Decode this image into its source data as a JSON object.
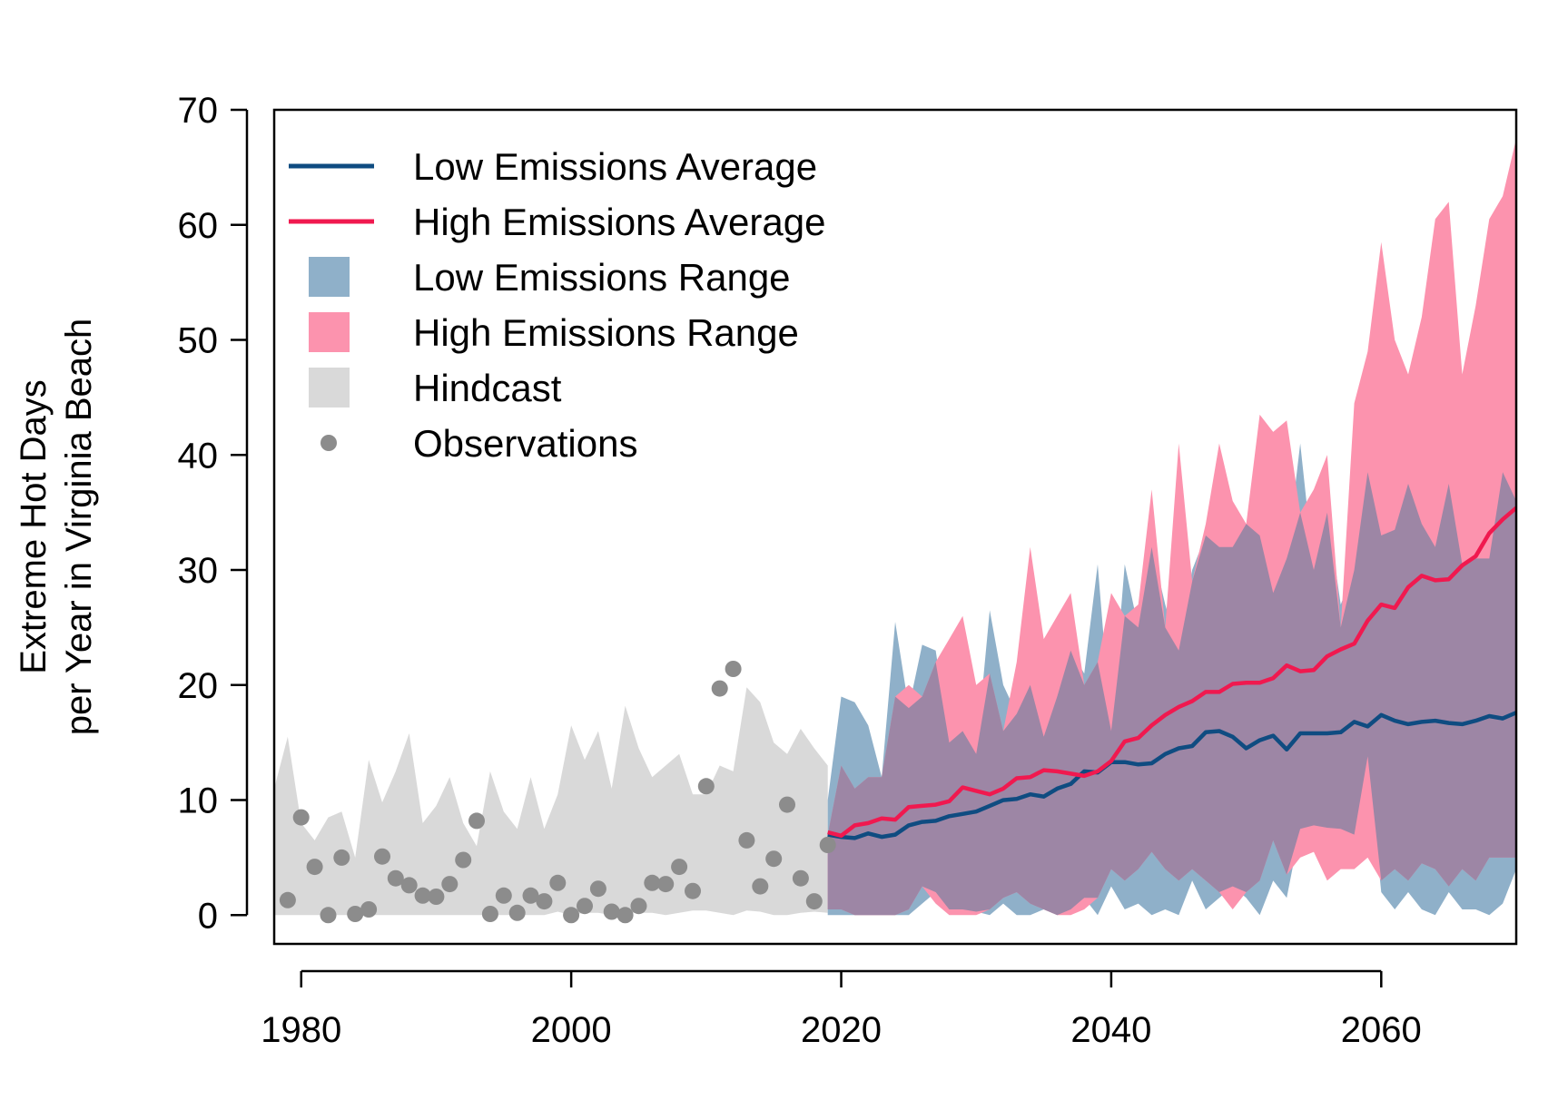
{
  "chart_data": {
    "type": "line",
    "title": "",
    "xlabel": "",
    "ylabel_lines": [
      "Extreme Hot Days",
      "per Year in Virginia Beach"
    ],
    "xlim": [
      1978,
      2070
    ],
    "ylim": [
      -2.5,
      70
    ],
    "xticks": [
      1980,
      2000,
      2020,
      2040,
      2060
    ],
    "yticks": [
      0,
      10,
      20,
      30,
      40,
      50,
      60,
      70
    ],
    "grid": false,
    "legend_position": "top-left",
    "colors": {
      "low_avg": "#0f4c81",
      "high_avg": "#f0194f",
      "low_range": "#8fb0c9",
      "high_range": "#fc93ae",
      "overlap": "#9d86a5",
      "hindcast": "#d9d9d9",
      "observations": "#8c8c8c",
      "frame": "#000000"
    },
    "legend": [
      {
        "label": "Low Emissions Average",
        "type": "line",
        "color_key": "low_avg"
      },
      {
        "label": "High Emissions Average",
        "type": "line",
        "color_key": "high_avg"
      },
      {
        "label": "Low Emissions Range",
        "type": "fill",
        "color_key": "low_range"
      },
      {
        "label": "High Emissions Range",
        "type": "fill",
        "color_key": "high_range"
      },
      {
        "label": "Hindcast",
        "type": "fill",
        "color_key": "hindcast"
      },
      {
        "label": "Observations",
        "type": "point",
        "color_key": "observations"
      }
    ],
    "hindcast_range": {
      "x": [
        1978,
        1979,
        1980,
        1981,
        1982,
        1983,
        1984,
        1985,
        1986,
        1987,
        1988,
        1989,
        1990,
        1991,
        1992,
        1993,
        1994,
        1995,
        1996,
        1997,
        1998,
        1999,
        2000,
        2001,
        2002,
        2003,
        2004,
        2005,
        2006,
        2007,
        2008,
        2009,
        2010,
        2011,
        2012,
        2013,
        2014,
        2015,
        2016,
        2017,
        2018,
        2019
      ],
      "lower": [
        0,
        0,
        0,
        0,
        0,
        0,
        0,
        0,
        0,
        0,
        0,
        0,
        0,
        0,
        0,
        0,
        0,
        0,
        0,
        0,
        0,
        0.3,
        0,
        0.2,
        0.2,
        0,
        0.2,
        0.2,
        0.2,
        0,
        0.2,
        0.4,
        0.4,
        0.2,
        0,
        0.4,
        0.3,
        0,
        0,
        0.2,
        0.3,
        0.2
      ],
      "upper": [
        11,
        15.5,
        8,
        6.5,
        8.5,
        9,
        5,
        13.5,
        9.8,
        12.5,
        15.8,
        8,
        9.5,
        12,
        8,
        6,
        12.5,
        9,
        7.5,
        12,
        7.5,
        10.5,
        16.5,
        13.5,
        16,
        11,
        18.2,
        14.5,
        12,
        13,
        14,
        10.5,
        10.5,
        13,
        12.5,
        19.8,
        18.5,
        15,
        14,
        16.2,
        14.5,
        13
      ]
    },
    "low_range": {
      "x": [
        2019,
        2020,
        2021,
        2022,
        2023,
        2024,
        2025,
        2026,
        2027,
        2028,
        2029,
        2030,
        2031,
        2032,
        2033,
        2034,
        2035,
        2036,
        2037,
        2038,
        2039,
        2040,
        2041,
        2042,
        2043,
        2044,
        2045,
        2046,
        2047,
        2048,
        2049,
        2050,
        2051,
        2052,
        2053,
        2054,
        2055,
        2056,
        2057,
        2058,
        2059,
        2060,
        2061,
        2062,
        2063,
        2064,
        2065,
        2066,
        2067,
        2068,
        2069,
        2070
      ],
      "lower": [
        0,
        0,
        0,
        0,
        0,
        0,
        0,
        1,
        2,
        0.5,
        0.5,
        0.3,
        0,
        1,
        0,
        0,
        0.5,
        0,
        0.5,
        1.5,
        0,
        2.5,
        0.5,
        1,
        0,
        0.5,
        0,
        3,
        0.5,
        1.5,
        2.5,
        1.5,
        0,
        3,
        1.5,
        7.5,
        7.8,
        7.6,
        7.5,
        7,
        13.8,
        2,
        0.5,
        2,
        0.5,
        0,
        2,
        0.5,
        0.5,
        0,
        1,
        4
      ],
      "upper": [
        10,
        19,
        18.5,
        16.5,
        12,
        25.5,
        18,
        23.5,
        23,
        15,
        16,
        14,
        26.5,
        20,
        17.5,
        20,
        15.5,
        19,
        23,
        21,
        30.5,
        16,
        30.5,
        25,
        32,
        27,
        23,
        30,
        33,
        32,
        32,
        34,
        33,
        28,
        31,
        41,
        30,
        35,
        27,
        30,
        38.5,
        33,
        33.5,
        37.5,
        34,
        32,
        37.5,
        30.5,
        31,
        31,
        38.5,
        36
      ]
    },
    "high_range": {
      "x": [
        2019,
        2020,
        2021,
        2022,
        2023,
        2024,
        2025,
        2026,
        2027,
        2028,
        2029,
        2030,
        2031,
        2032,
        2033,
        2034,
        2035,
        2036,
        2037,
        2038,
        2039,
        2040,
        2041,
        2042,
        2043,
        2044,
        2045,
        2046,
        2047,
        2048,
        2049,
        2050,
        2051,
        2052,
        2053,
        2054,
        2055,
        2056,
        2057,
        2058,
        2059,
        2060,
        2061,
        2062,
        2063,
        2064,
        2065,
        2066,
        2067,
        2068,
        2069,
        2070
      ],
      "lower": [
        0.5,
        0.5,
        0,
        0,
        0,
        0,
        0.5,
        2.5,
        1,
        0,
        0,
        0,
        0.5,
        1.5,
        2,
        1,
        0.5,
        0,
        0,
        0.5,
        1.5,
        4,
        3,
        4,
        5.5,
        4,
        3,
        4,
        3,
        2,
        0.5,
        2,
        3,
        6.5,
        3.5,
        5,
        5.5,
        3,
        4,
        4,
        5,
        3,
        4,
        3,
        4.5,
        4,
        2.5,
        4,
        3,
        5,
        5,
        5
      ],
      "upper": [
        7,
        13,
        11,
        12,
        12,
        19,
        20,
        19,
        22,
        24,
        26,
        20,
        21,
        16,
        22,
        32,
        24,
        26,
        28,
        20,
        22,
        28,
        26,
        27,
        37,
        25,
        41,
        29,
        34,
        41,
        36,
        34,
        43.5,
        42,
        43,
        35,
        37,
        40,
        25,
        44.5,
        49,
        58.5,
        50,
        47,
        52,
        60.5,
        62,
        47,
        53,
        60.5,
        62.5,
        67.5
      ]
    },
    "observations": {
      "x": [
        1979,
        1980,
        1981,
        1982,
        1983,
        1984,
        1985,
        1986,
        1987,
        1988,
        1989,
        1990,
        1991,
        1992,
        1993,
        1994,
        1995,
        1996,
        1997,
        1998,
        1999,
        2000,
        2001,
        2002,
        2003,
        2004,
        2005,
        2006,
        2007,
        2008,
        2009,
        2010,
        2011,
        2012,
        2013,
        2014,
        2015,
        2016,
        2017,
        2018,
        2019
      ],
      "y": [
        1.3,
        8.5,
        4.2,
        0,
        5,
        0.1,
        0.5,
        5.1,
        3.2,
        2.6,
        1.7,
        1.6,
        2.7,
        4.8,
        8.2,
        0.1,
        1.7,
        0.2,
        1.7,
        1.2,
        2.8,
        0,
        0.8,
        2.3,
        0.3,
        0,
        0.8,
        2.8,
        2.7,
        4.2,
        2.1,
        11.2,
        19.7,
        21.4,
        6.5,
        2.5,
        4.9,
        9.6,
        3.2,
        1.2,
        6.1
      ]
    },
    "series": [
      {
        "name": "Low Emissions Average",
        "x": [
          2019,
          2020,
          2021,
          2022,
          2023,
          2024,
          2025,
          2026,
          2027,
          2028,
          2029,
          2030,
          2031,
          2032,
          2033,
          2034,
          2035,
          2036,
          2037,
          2038,
          2039,
          2040,
          2041,
          2042,
          2043,
          2044,
          2045,
          2046,
          2047,
          2048,
          2049,
          2050,
          2051,
          2052,
          2053,
          2054,
          2055,
          2056,
          2057,
          2058,
          2059,
          2060,
          2061,
          2062,
          2063,
          2064,
          2065,
          2066,
          2067,
          2068,
          2069,
          2070
        ],
        "values": [
          7,
          6.8,
          6.7,
          7.1,
          6.8,
          7,
          7.8,
          8.1,
          8.2,
          8.6,
          8.8,
          9,
          9.5,
          10,
          10.1,
          10.5,
          10.3,
          11,
          11.4,
          12.5,
          12.4,
          13.3,
          13.3,
          13.1,
          13.2,
          14,
          14.5,
          14.7,
          15.9,
          16,
          15.5,
          14.5,
          15.2,
          15.6,
          14.4,
          15.8,
          15.8,
          15.8,
          15.9,
          16.8,
          16.4,
          17.4,
          16.9,
          16.6,
          16.8,
          16.9,
          16.7,
          16.6,
          16.9,
          17.3,
          17.1,
          17.6
        ]
      },
      {
        "name": "High Emissions Average",
        "x": [
          2019,
          2020,
          2021,
          2022,
          2023,
          2024,
          2025,
          2026,
          2027,
          2028,
          2029,
          2030,
          2031,
          2032,
          2033,
          2034,
          2035,
          2036,
          2037,
          2038,
          2039,
          2040,
          2041,
          2042,
          2043,
          2044,
          2045,
          2046,
          2047,
          2048,
          2049,
          2050,
          2051,
          2052,
          2053,
          2054,
          2055,
          2056,
          2057,
          2058,
          2059,
          2060,
          2061,
          2062,
          2063,
          2064,
          2065,
          2066,
          2067,
          2068,
          2069,
          2070
        ],
        "values": [
          7.2,
          6.9,
          7.8,
          8,
          8.4,
          8.3,
          9.4,
          9.5,
          9.6,
          9.9,
          11.1,
          10.8,
          10.5,
          11,
          11.9,
          12,
          12.6,
          12.5,
          12.3,
          12.1,
          12.5,
          13.4,
          15.1,
          15.4,
          16.5,
          17.4,
          18.1,
          18.6,
          19.4,
          19.4,
          20.1,
          20.2,
          20.2,
          20.6,
          21.7,
          21.2,
          21.3,
          22.5,
          23.1,
          23.6,
          25.6,
          27,
          26.7,
          28.5,
          29.5,
          29.1,
          29.2,
          30.4,
          31.2,
          33.2,
          34.4,
          35.4
        ]
      }
    ]
  }
}
